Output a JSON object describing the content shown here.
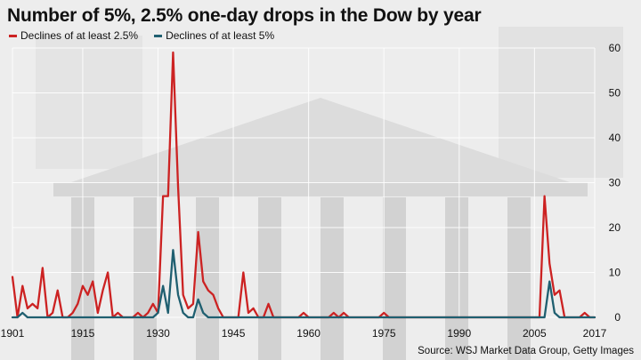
{
  "chart_data": {
    "type": "line",
    "title": "Number of 5%, 2.5% one-day drops in the Dow by year",
    "source": "Source: WSJ Market Data Group, Getty Images",
    "x_start": 1901,
    "x_end": 2017,
    "x_ticks": [
      1901,
      1915,
      1930,
      1945,
      1960,
      1975,
      1990,
      2005,
      2017
    ],
    "y_ticks": [
      0,
      10,
      20,
      30,
      40,
      50,
      60
    ],
    "ylim": [
      0,
      60
    ],
    "grid": true,
    "y_axis_side": "right",
    "legend_position": "top-left",
    "series": [
      {
        "name": "Declines of at least 2.5%",
        "color": "#cc2222",
        "values": [
          9,
          0,
          7,
          2,
          3,
          2,
          11,
          0,
          1,
          6,
          0,
          0,
          1,
          3,
          7,
          5,
          8,
          1,
          6,
          10,
          0,
          1,
          0,
          0,
          0,
          1,
          0,
          1,
          3,
          1,
          27,
          27,
          59,
          29,
          5,
          2,
          3,
          19,
          8,
          6,
          5,
          2,
          0,
          0,
          0,
          0,
          10,
          1,
          2,
          0,
          0,
          3,
          0,
          0,
          0,
          0,
          0,
          0,
          1,
          0,
          0,
          0,
          0,
          0,
          1,
          0,
          1,
          0,
          0,
          0,
          0,
          0,
          0,
          0,
          1,
          0,
          0,
          0,
          0,
          0,
          0,
          0,
          0,
          0,
          0,
          0,
          0,
          0,
          0,
          0,
          0,
          0,
          0,
          0,
          0,
          0,
          0,
          0,
          0,
          0,
          0,
          0,
          0,
          0,
          0,
          0,
          27,
          12,
          5,
          6,
          0,
          0,
          0,
          0,
          1,
          0,
          0
        ]
      },
      {
        "name": "Declines of at least 5%",
        "color": "#1f5f70",
        "values": [
          0,
          0,
          1,
          0,
          0,
          0,
          0,
          0,
          0,
          0,
          0,
          0,
          0,
          0,
          0,
          0,
          0,
          0,
          0,
          0,
          0,
          0,
          0,
          0,
          0,
          0,
          0,
          0,
          0,
          1,
          7,
          1,
          15,
          5,
          1,
          0,
          0,
          4,
          1,
          0,
          0,
          0,
          0,
          0,
          0,
          0,
          0,
          0,
          0,
          0,
          0,
          0,
          0,
          0,
          0,
          0,
          0,
          0,
          0,
          0,
          0,
          0,
          0,
          0,
          0,
          0,
          0,
          0,
          0,
          0,
          0,
          0,
          0,
          0,
          0,
          0,
          0,
          0,
          0,
          0,
          0,
          0,
          0,
          0,
          0,
          0,
          0,
          0,
          0,
          0,
          0,
          0,
          0,
          0,
          0,
          0,
          0,
          0,
          0,
          0,
          0,
          0,
          0,
          0,
          0,
          0,
          0,
          8,
          1,
          0,
          0,
          0,
          0,
          0,
          0,
          0,
          0
        ]
      }
    ]
  },
  "colors": {
    "red": "#cc2222",
    "teal": "#1f5f70"
  }
}
